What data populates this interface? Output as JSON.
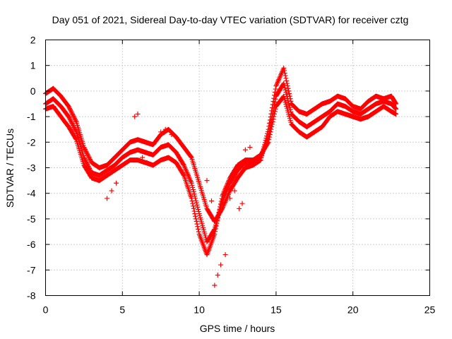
{
  "chart_data": {
    "type": "scatter",
    "title": "Day 051 of 2021, Sidereal Day-to-day VTEC variation (SDTVAR) for receiver cztg",
    "xlabel": "GPS time / hours",
    "ylabel": "SDTVAR / TECUs",
    "xlim": [
      0,
      25
    ],
    "ylim": [
      -8,
      2
    ],
    "xticks": [
      0,
      5,
      10,
      15,
      20,
      25
    ],
    "yticks": [
      -8,
      -7,
      -6,
      -5,
      -4,
      -3,
      -2,
      -1,
      0,
      1,
      2
    ],
    "xtick_labels": [
      "0",
      "5",
      "10",
      "15",
      "20",
      "25"
    ],
    "ytick_labels": [
      "-8",
      "-7",
      "-6",
      "-5",
      "-4",
      "-3",
      "-2",
      "-1",
      "0",
      "1",
      "2"
    ],
    "grid": true,
    "legend": "none",
    "marker": "plus",
    "color": "#ff0000",
    "series": [
      {
        "name": "track-1",
        "x": [
          0.0,
          0.5,
          1.0,
          1.5,
          2.0,
          2.5,
          3.0,
          3.5,
          4.0,
          4.5,
          5.0,
          5.5,
          6.0,
          6.5,
          7.0,
          7.5,
          8.0,
          8.5,
          9.0,
          9.5,
          10.0,
          10.5,
          11.0,
          11.5,
          12.0,
          12.5,
          13.0,
          13.5,
          14.0,
          14.5,
          15.0,
          15.5,
          16.0,
          16.5,
          17.0,
          17.5,
          18.0,
          18.5,
          19.0,
          19.5,
          20.0,
          20.5,
          21.0,
          21.5,
          22.0,
          22.5,
          22.8
        ],
        "y": [
          -0.1,
          0.1,
          -0.2,
          -0.6,
          -1.2,
          -2.2,
          -2.8,
          -3.0,
          -2.9,
          -2.6,
          -2.3,
          -2.0,
          -1.9,
          -2.0,
          -2.1,
          -1.7,
          -1.5,
          -1.8,
          -2.2,
          -2.6,
          -3.6,
          -4.6,
          -5.1,
          -4.6,
          -3.9,
          -3.4,
          -3.0,
          -2.9,
          -2.7,
          -1.5,
          0.2,
          0.9,
          -0.5,
          -0.8,
          -0.9,
          -0.7,
          -0.5,
          -0.4,
          -0.2,
          -0.3,
          -0.6,
          -0.7,
          -0.4,
          -0.2,
          -0.3,
          -0.2,
          -0.5
        ]
      },
      {
        "name": "track-2",
        "x": [
          0.0,
          0.5,
          1.0,
          1.5,
          2.0,
          2.5,
          3.0,
          3.5,
          4.0,
          4.5,
          5.0,
          5.5,
          6.0,
          6.5,
          7.0,
          7.5,
          8.0,
          8.5,
          9.0,
          9.5,
          10.0,
          10.5,
          11.0,
          11.5,
          12.0,
          12.5,
          13.0,
          13.5,
          14.0,
          14.5,
          15.0,
          15.5,
          16.0,
          16.5,
          17.0,
          17.5,
          18.0,
          18.5,
          19.0,
          19.5,
          20.0,
          20.5,
          21.0,
          21.5,
          22.0,
          22.5,
          22.8
        ],
        "y": [
          -0.5,
          -0.3,
          -0.6,
          -1.0,
          -1.6,
          -2.6,
          -3.2,
          -3.3,
          -3.1,
          -2.9,
          -2.6,
          -2.4,
          -2.3,
          -2.4,
          -2.5,
          -2.2,
          -2.1,
          -2.4,
          -2.9,
          -3.6,
          -4.8,
          -5.9,
          -5.4,
          -4.3,
          -3.6,
          -3.1,
          -2.8,
          -2.8,
          -2.6,
          -1.8,
          -0.2,
          0.3,
          -0.9,
          -1.2,
          -1.4,
          -1.2,
          -1.0,
          -0.8,
          -0.5,
          -0.6,
          -0.8,
          -0.9,
          -0.7,
          -0.5,
          -0.4,
          -0.5,
          -0.7
        ]
      },
      {
        "name": "track-3",
        "x": [
          0.0,
          0.5,
          1.0,
          1.5,
          2.0,
          2.5,
          3.0,
          3.5,
          4.0,
          4.5,
          5.0,
          5.5,
          6.0,
          6.5,
          7.0,
          7.5,
          8.0,
          8.5,
          9.0,
          9.5,
          10.0,
          10.5,
          11.0,
          11.5,
          12.0,
          12.5,
          13.0,
          13.5,
          14.0,
          14.5,
          15.0,
          15.5,
          16.0,
          16.5,
          17.0,
          17.5,
          18.0,
          18.5,
          19.0,
          19.5,
          20.0,
          20.5,
          21.0,
          21.5,
          22.0,
          22.5,
          22.8
        ],
        "y": [
          -0.7,
          -0.6,
          -1.0,
          -1.4,
          -1.9,
          -2.9,
          -3.4,
          -3.5,
          -3.3,
          -3.1,
          -2.9,
          -2.7,
          -2.7,
          -2.8,
          -2.9,
          -2.7,
          -2.6,
          -2.8,
          -3.3,
          -4.2,
          -5.6,
          -6.4,
          -5.6,
          -4.1,
          -3.4,
          -2.9,
          -2.7,
          -2.7,
          -2.5,
          -2.0,
          -0.6,
          -0.2,
          -1.3,
          -1.6,
          -1.8,
          -1.6,
          -1.4,
          -1.0,
          -0.8,
          -0.9,
          -1.0,
          -1.1,
          -1.0,
          -0.8,
          -0.6,
          -0.8,
          -0.9
        ]
      },
      {
        "name": "fragments",
        "x": [
          4.0,
          4.3,
          4.6,
          5.8,
          6.0,
          6.3,
          6.6,
          7.5,
          7.8,
          8.2,
          10.5,
          10.8,
          11.0,
          11.2,
          11.4,
          11.7,
          12.0,
          12.3,
          12.6,
          12.8,
          13.0,
          13.3
        ],
        "y": [
          -4.2,
          -3.9,
          -3.6,
          -1.0,
          -0.9,
          -2.6,
          -2.8,
          -1.6,
          -1.5,
          -1.7,
          -3.5,
          -4.3,
          -7.6,
          -7.2,
          -6.8,
          -6.4,
          -4.2,
          -3.9,
          -4.6,
          -4.4,
          -2.3,
          -2.2
        ]
      }
    ]
  }
}
